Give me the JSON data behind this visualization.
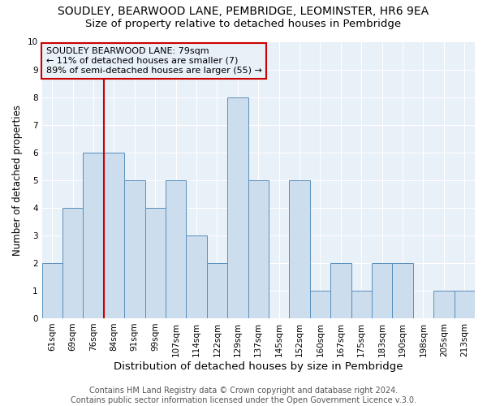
{
  "title": "SOUDLEY, BEARWOOD LANE, PEMBRIDGE, LEOMINSTER, HR6 9EA",
  "subtitle": "Size of property relative to detached houses in Pembridge",
  "xlabel": "Distribution of detached houses by size in Pembridge",
  "ylabel": "Number of detached properties",
  "bins": [
    "61sqm",
    "69sqm",
    "76sqm",
    "84sqm",
    "91sqm",
    "99sqm",
    "107sqm",
    "114sqm",
    "122sqm",
    "129sqm",
    "137sqm",
    "145sqm",
    "152sqm",
    "160sqm",
    "167sqm",
    "175sqm",
    "183sqm",
    "190sqm",
    "198sqm",
    "205sqm",
    "213sqm"
  ],
  "bar_heights": [
    2,
    4,
    6,
    6,
    5,
    4,
    5,
    3,
    2,
    8,
    5,
    0,
    5,
    1,
    2,
    1,
    2,
    2,
    0,
    1,
    1
  ],
  "bar_color": "#ccdded",
  "bar_edge_color": "#5a8fbb",
  "red_line_bin_index": 2,
  "annotation_title": "SOUDLEY BEARWOOD LANE: 79sqm",
  "annotation_line1": "← 11% of detached houses are smaller (7)",
  "annotation_line2": "89% of semi-detached houses are larger (55) →",
  "annotation_box_edge_color": "#cc0000",
  "red_line_color": "#cc0000",
  "ylim": [
    0,
    10
  ],
  "yticks": [
    0,
    1,
    2,
    3,
    4,
    5,
    6,
    7,
    8,
    9,
    10
  ],
  "footer_line1": "Contains HM Land Registry data © Crown copyright and database right 2024.",
  "footer_line2": "Contains public sector information licensed under the Open Government Licence v.3.0.",
  "title_fontsize": 10,
  "subtitle_fontsize": 9.5,
  "xlabel_fontsize": 9.5,
  "ylabel_fontsize": 8.5,
  "footer_fontsize": 7,
  "annotation_fontsize": 8,
  "tick_fontsize": 7.5,
  "background_color": "#ffffff",
  "plot_bg_color": "#e8f0f8",
  "grid_color": "#ffffff"
}
